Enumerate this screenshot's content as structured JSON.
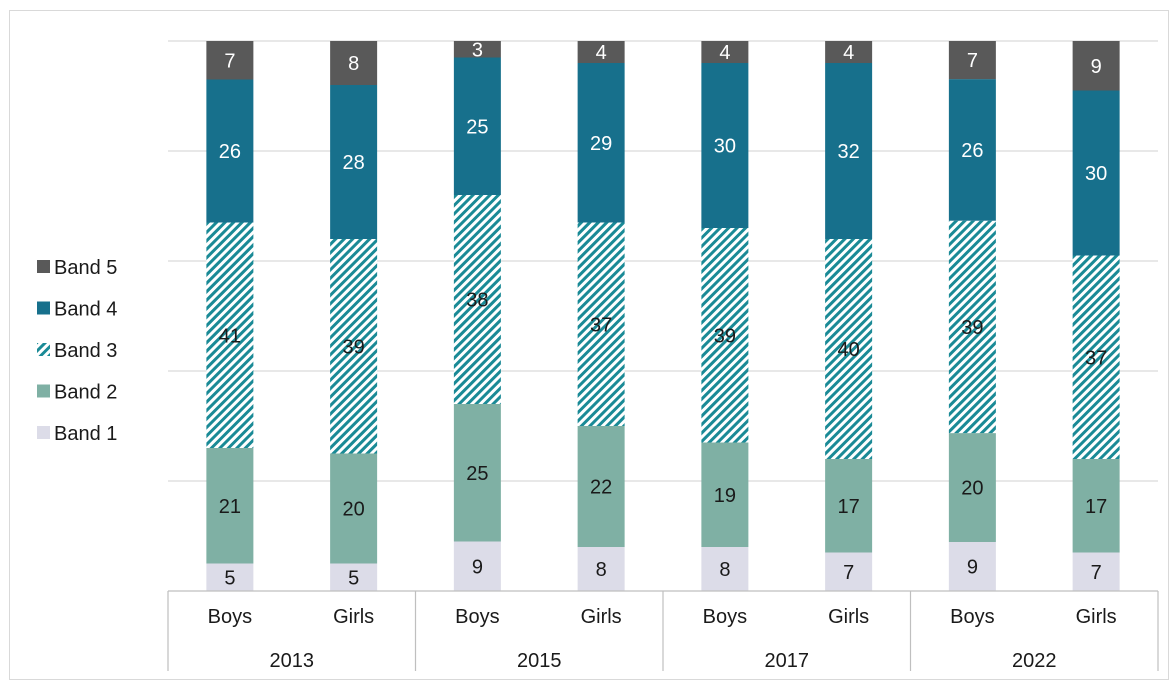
{
  "chart_data": {
    "type": "bar",
    "stacked": true,
    "orientation": "vertical",
    "title": "",
    "xlabel": "",
    "ylabel": "",
    "ylim": [
      0,
      100
    ],
    "grid": true,
    "legend_position": "left",
    "categories": [
      "Boys",
      "Girls",
      "Boys",
      "Girls",
      "Boys",
      "Girls",
      "Boys",
      "Girls"
    ],
    "groups": [
      {
        "label": "2013",
        "categories": [
          "Boys",
          "Girls"
        ]
      },
      {
        "label": "2015",
        "categories": [
          "Boys",
          "Girls"
        ]
      },
      {
        "label": "2017",
        "categories": [
          "Boys",
          "Girls"
        ]
      },
      {
        "label": "2022",
        "categories": [
          "Boys",
          "Girls"
        ]
      }
    ],
    "series": [
      {
        "name": "Band 1",
        "color": "#dcdce8",
        "pattern": "solid",
        "label_color": "#1a1a1a",
        "values": [
          5,
          5,
          9,
          8,
          8,
          7,
          9,
          7
        ]
      },
      {
        "name": "Band 2",
        "color": "#7fb0a4",
        "pattern": "solid",
        "label_color": "#1a1a1a",
        "values": [
          21,
          20,
          25,
          22,
          19,
          17,
          20,
          17
        ]
      },
      {
        "name": "Band 3",
        "color": "#1a8a96",
        "pattern": "hatch",
        "label_color": "#1a1a1a",
        "values": [
          41,
          39,
          38,
          37,
          39,
          40,
          39,
          37
        ]
      },
      {
        "name": "Band 4",
        "color": "#17708c",
        "pattern": "solid",
        "label_color": "#ffffff",
        "values": [
          26,
          28,
          25,
          29,
          30,
          32,
          26,
          30
        ]
      },
      {
        "name": "Band 5",
        "color": "#595959",
        "pattern": "solid",
        "label_color": "#ffffff",
        "values": [
          7,
          8,
          3,
          4,
          4,
          4,
          7,
          9
        ]
      }
    ]
  }
}
